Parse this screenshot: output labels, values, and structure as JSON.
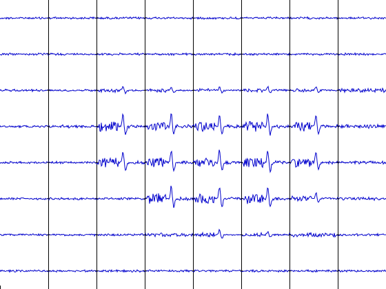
{
  "chart_data": {
    "type": "line",
    "title": "",
    "xlabel": "",
    "ylabel": "",
    "grid": true,
    "columns": 8,
    "rows": 8,
    "line_color": "#0000cc",
    "grid_color": "#000000",
    "background": "#ffffff",
    "activity_rows": [
      [
        0.05,
        0.05,
        0.05,
        0.05,
        0.05,
        0.05,
        0.05,
        0.05
      ],
      [
        0.05,
        0.05,
        0.05,
        0.05,
        0.05,
        0.05,
        0.05,
        0.05
      ],
      [
        0.05,
        0.05,
        0.3,
        0.3,
        0.25,
        0.3,
        0.3,
        0.15
      ],
      [
        0.05,
        0.1,
        1.0,
        1.0,
        1.0,
        1.0,
        0.9,
        0.15
      ],
      [
        0.05,
        0.05,
        0.9,
        1.0,
        1.0,
        1.0,
        0.9,
        0.1
      ],
      [
        0.05,
        0.05,
        0.05,
        1.0,
        1.0,
        1.0,
        0.5,
        0.1
      ],
      [
        0.05,
        0.05,
        0.05,
        0.15,
        0.4,
        0.3,
        0.15,
        0.05
      ],
      [
        0.05,
        0.05,
        0.05,
        0.05,
        0.05,
        0.05,
        0.05,
        0.05
      ]
    ]
  }
}
